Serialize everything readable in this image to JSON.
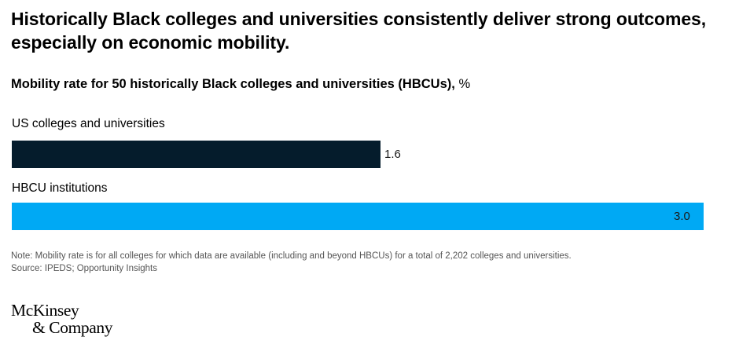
{
  "headline": "Historically Black colleges and universities consistently deliver strong outcomes, especially on economic mobility.",
  "chart_data": {
    "type": "bar",
    "orientation": "horizontal",
    "title": "Mobility rate for 50 historically Black colleges and universities (HBCUs),",
    "unit": "%",
    "categories": [
      "US colleges and universities",
      "HBCU institutions"
    ],
    "values": [
      1.6,
      3.0
    ],
    "value_labels": [
      "1.6",
      "3.0"
    ],
    "colors": [
      "#051c2c",
      "#00a9f4"
    ],
    "xlim": [
      0,
      3.0
    ],
    "grid": false
  },
  "note": "Note: Mobility rate is for all colleges for which data are available (including and beyond HBCUs) for a total of 2,202 colleges and universities.",
  "source": "Source: IPEDS; Opportunity Insights",
  "logo": {
    "line1": "McKinsey",
    "line2": "& Company"
  }
}
